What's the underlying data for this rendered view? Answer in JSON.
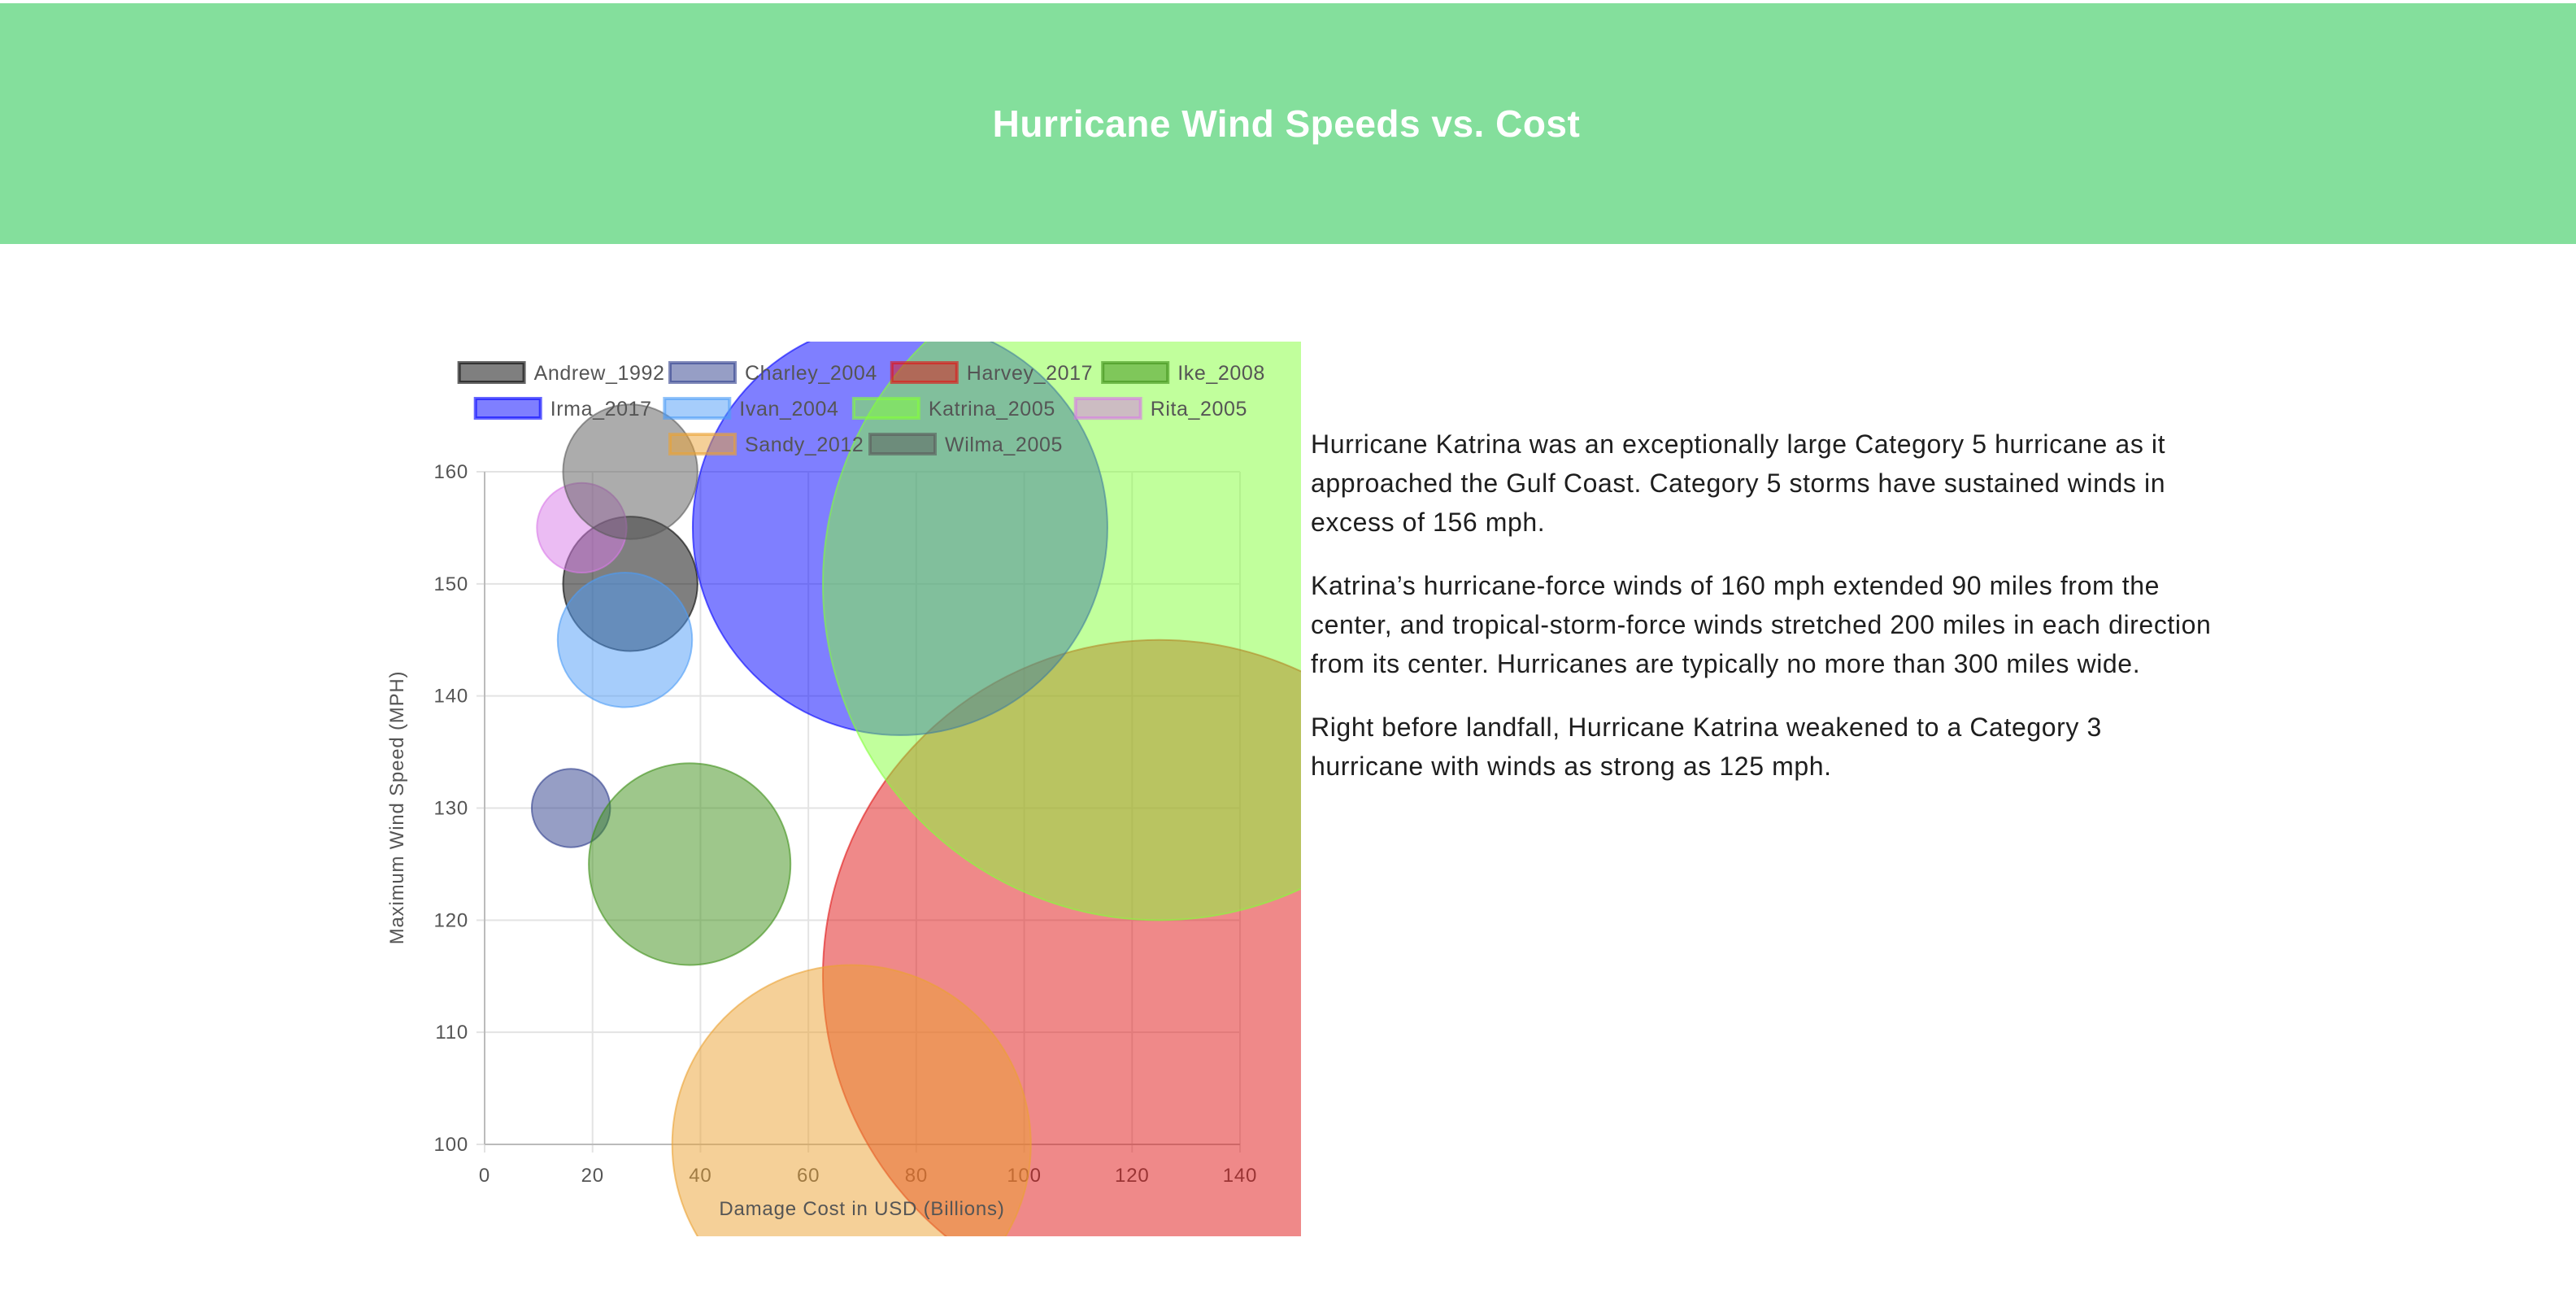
{
  "page": {
    "title": "Hurricane Wind Speeds vs. Cost",
    "paragraphs": [
      "Hurricane Katrina was an exceptionally large Category 5 hurricane as it approached the Gulf Coast. Category 5 storms have sustained winds in excess of 156 mph.",
      "Katrina’s hurricane-force winds of 160 mph extended 90 miles from the center, and tropical-storm-force winds stretched 200 miles in each direction from its center. Hurricanes are typically no more than 300 miles wide.",
      "Right before landfall, Hurricane Katrina weakened to a Category 3 hurricane with winds as strong as 125 mph."
    ]
  },
  "chart_data": {
    "type": "scatter",
    "title": "",
    "xlabel": "Damage Cost in USD (Billions)",
    "ylabel": "Maximum Wind Speed (MPH)",
    "xlim": [
      0,
      140
    ],
    "ylim": [
      100,
      160
    ],
    "xticks": [
      0,
      20,
      40,
      60,
      80,
      100,
      120,
      140
    ],
    "yticks": [
      100,
      110,
      120,
      130,
      140,
      150,
      160
    ],
    "grid": true,
    "legend_position": "top",
    "series": [
      {
        "name": "Andrew_1992",
        "x": 27,
        "y": 150,
        "r": 12,
        "color": "#000000"
      },
      {
        "name": "Charley_2004",
        "x": 16,
        "y": 130,
        "r": 7,
        "color": "#2e3e8c"
      },
      {
        "name": "Harvey_2017",
        "x": 125,
        "y": 115,
        "r": 60,
        "color": "#e01414"
      },
      {
        "name": "Ike_2008",
        "x": 38,
        "y": 125,
        "r": 18,
        "color": "#3d8f17"
      },
      {
        "name": "Irma_2017",
        "x": 77,
        "y": 155,
        "r": 37,
        "color": "#0000ff"
      },
      {
        "name": "Ivan_2004",
        "x": 26,
        "y": 145,
        "r": 12,
        "color": "#4d9cf7"
      },
      {
        "name": "Katrina_2005",
        "x": 125,
        "y": 150,
        "r": 60,
        "color": "#84ff3a"
      },
      {
        "name": "Rita_2005",
        "x": 18,
        "y": 155,
        "r": 8,
        "color": "#d879e8"
      },
      {
        "name": "Sandy_2012",
        "x": 68,
        "y": 100,
        "r": 32,
        "color": "#eba232"
      },
      {
        "name": "Wilma_2005",
        "x": 27,
        "y": 160,
        "r": 12,
        "color": "#5a5a5a"
      }
    ]
  }
}
